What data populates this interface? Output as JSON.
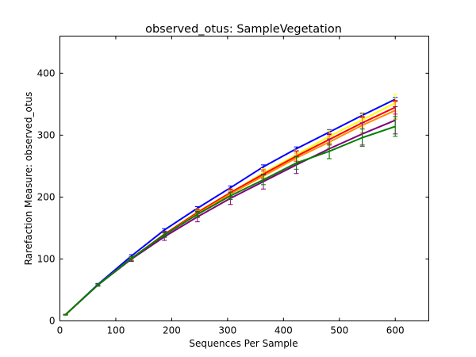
{
  "chart_data": {
    "type": "line",
    "title": "observed_otus: SampleVegetation",
    "xlabel": "Sequences Per Sample",
    "ylabel": "Rarefaction Measure: observed_otus",
    "xlim": [
      0,
      660
    ],
    "ylim": [
      0,
      460
    ],
    "xticks": [
      0,
      100,
      200,
      300,
      400,
      500,
      600
    ],
    "yticks": [
      0,
      100,
      200,
      300,
      400
    ],
    "grid": false,
    "legend": "none",
    "x": [
      10,
      68,
      128,
      187,
      246,
      305,
      364,
      423,
      482,
      541,
      600
    ],
    "series": [
      {
        "color": "#0000ff",
        "values": [
          10,
          59,
          105,
          147,
          182,
          215,
          249,
          278,
          305,
          332,
          358
        ],
        "err": [
          0.5,
          1.5,
          2,
          2,
          2.5,
          3,
          3,
          3,
          4,
          3,
          3
        ]
      },
      {
        "color": "#ffff00",
        "values": [
          10,
          58,
          101,
          140,
          176,
          207,
          239,
          268,
          298,
          325,
          352
        ],
        "err": [
          0.5,
          1.5,
          3,
          4,
          5,
          6,
          7,
          8,
          10,
          12,
          14
        ]
      },
      {
        "color": "#ff0000",
        "values": [
          10,
          58,
          101,
          140,
          175,
          207,
          237,
          266,
          293,
          320,
          345
        ],
        "err": [
          0.5,
          1.5,
          3,
          4,
          5,
          6,
          7,
          8,
          9,
          10,
          11
        ]
      },
      {
        "color": "#ff8c00",
        "values": [
          10,
          58,
          100,
          139,
          173,
          205,
          234,
          263,
          289,
          316,
          340
        ],
        "err": [
          0.5,
          1.5,
          3,
          4,
          5,
          6,
          7,
          8,
          10,
          12,
          14
        ]
      },
      {
        "color": "#800080",
        "values": [
          10,
          58,
          100,
          136,
          168,
          198,
          225,
          252,
          278,
          302,
          324
        ],
        "err": [
          0.5,
          2,
          4,
          6,
          8,
          10,
          12,
          14,
          16,
          18,
          22
        ]
      },
      {
        "color": "#008000",
        "values": [
          10,
          58,
          101,
          139,
          172,
          202,
          228,
          255,
          274,
          296,
          314
        ],
        "err": [
          0.5,
          1.5,
          3,
          4,
          5,
          6,
          8,
          10,
          12,
          14,
          16
        ]
      }
    ]
  }
}
